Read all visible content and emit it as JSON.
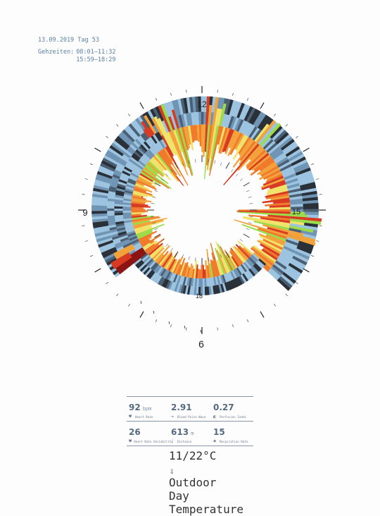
{
  "header": {
    "date_line": "13.09.2019 Tag 53",
    "times_label": "Gehzeiten:",
    "times": [
      "08:01–11:32",
      "15:59–18:29"
    ]
  },
  "chart_data": {
    "type": "radial-spiral-bar",
    "hour_labels": [
      "12",
      "15",
      "18",
      "9",
      "6"
    ],
    "palette": {
      "light_blue": "#9cc4e0",
      "mid_blue": "#6f94b4",
      "slate": "#4a5f73",
      "dark": "#2a3038",
      "orange": "#f07a2c",
      "amber": "#f3a23a",
      "yellow": "#f0e26a",
      "green": "#9bdc4a",
      "red": "#d83a22",
      "dark_red": "#8c1412"
    }
  },
  "stats": [
    {
      "value": "92",
      "unit": "bpm",
      "label": "Heart Rate",
      "icon": "heart-icon"
    },
    {
      "value": "2.91",
      "unit": "",
      "label": "Blood Pulse Wave",
      "icon": "pulse-wave-icon"
    },
    {
      "value": "0.27",
      "unit": "",
      "label": "Perfusion Index",
      "icon": "perfusion-icon"
    },
    {
      "value": "26",
      "unit": "",
      "label": "Heart Rate Variability",
      "icon": "hrv-icon"
    },
    {
      "value": "613",
      "unit": "m",
      "label": "Distance",
      "icon": "footsteps-icon"
    },
    {
      "value": "15",
      "unit": "",
      "label": "Respiration Rate",
      "icon": "lungs-icon"
    }
  ],
  "temperature": {
    "value": "11/22",
    "unit": "°C",
    "label": "Outdoor Day Temperature",
    "icon": "thermometer-icon"
  }
}
